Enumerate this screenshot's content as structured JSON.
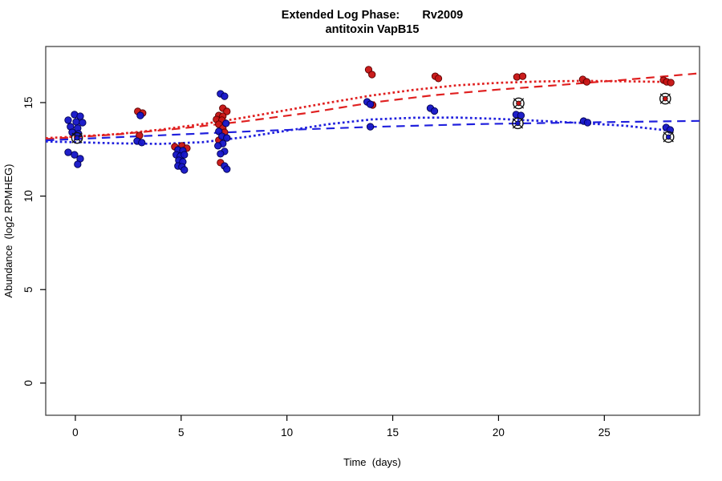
{
  "chart_data": {
    "type": "scatter",
    "title": "Extended Log Phase:       Rv2009",
    "subtitle": "antitoxin VapB15",
    "xlabel": "Time  (days)",
    "ylabel": "Abundance  (log2 RPMHEG)",
    "xlim": [
      -1.4,
      29.5
    ],
    "ylim": [
      -1.72,
      18.0
    ],
    "xticks": [
      0,
      5,
      10,
      15,
      20,
      25
    ],
    "yticks": [
      0,
      5,
      10,
      15
    ],
    "grid": false,
    "legend": "none",
    "colors": {
      "red": "#c81414",
      "red_edge": "#5a0000",
      "blue": "#1616c8",
      "blue_edge": "#000050",
      "red_line": "#e02020",
      "blue_line": "#2020dd",
      "flag_outline": "#111111",
      "axis": "#444444"
    },
    "series": [
      {
        "name": "red-points",
        "marker": "dot",
        "color_key": "red",
        "edge_key": "red_edge",
        "points": [
          [
            2.95,
            14.53
          ],
          [
            3.18,
            14.44
          ],
          [
            3.03,
            13.24
          ],
          [
            4.7,
            12.64
          ],
          [
            5.04,
            12.69
          ],
          [
            5.27,
            12.56
          ],
          [
            6.97,
            14.7
          ],
          [
            7.16,
            14.53
          ],
          [
            6.78,
            14.31
          ],
          [
            6.97,
            14.27
          ],
          [
            6.67,
            14.1
          ],
          [
            6.93,
            14.06
          ],
          [
            6.78,
            13.84
          ],
          [
            6.97,
            13.63
          ],
          [
            7.05,
            13.41
          ],
          [
            6.78,
            12.99
          ],
          [
            6.86,
            11.79
          ],
          [
            13.86,
            16.76
          ],
          [
            14.02,
            16.5
          ],
          [
            14.05,
            14.87
          ],
          [
            17.01,
            16.41
          ],
          [
            17.16,
            16.29
          ],
          [
            20.87,
            16.37
          ],
          [
            21.14,
            16.41
          ],
          [
            23.98,
            16.24
          ],
          [
            24.17,
            16.11
          ],
          [
            27.8,
            16.2
          ],
          [
            27.95,
            16.11
          ],
          [
            28.14,
            16.07
          ]
        ]
      },
      {
        "name": "blue-points",
        "marker": "dot",
        "color_key": "blue",
        "edge_key": "blue_edge",
        "points": [
          [
            -0.04,
            14.36
          ],
          [
            0.23,
            14.27
          ],
          [
            -0.34,
            14.06
          ],
          [
            0.04,
            13.97
          ],
          [
            0.34,
            13.93
          ],
          [
            -0.23,
            13.71
          ],
          [
            0.11,
            13.63
          ],
          [
            -0.15,
            13.41
          ],
          [
            0.15,
            13.33
          ],
          [
            -0.34,
            12.34
          ],
          [
            -0.04,
            12.21
          ],
          [
            0.23,
            12.0
          ],
          [
            0.11,
            11.7
          ],
          [
            3.07,
            14.31
          ],
          [
            2.92,
            12.94
          ],
          [
            3.14,
            12.86
          ],
          [
            4.85,
            12.47
          ],
          [
            5.08,
            12.43
          ],
          [
            4.77,
            12.21
          ],
          [
            4.96,
            12.13
          ],
          [
            5.15,
            12.21
          ],
          [
            4.89,
            11.91
          ],
          [
            5.08,
            11.83
          ],
          [
            4.85,
            11.61
          ],
          [
            5.04,
            11.57
          ],
          [
            5.15,
            11.4
          ],
          [
            6.86,
            15.47
          ],
          [
            7.05,
            15.34
          ],
          [
            7.12,
            13.89
          ],
          [
            6.78,
            13.46
          ],
          [
            6.93,
            13.2
          ],
          [
            7.16,
            13.11
          ],
          [
            6.97,
            12.81
          ],
          [
            6.74,
            12.69
          ],
          [
            7.05,
            12.39
          ],
          [
            6.86,
            12.26
          ],
          [
            7.05,
            11.61
          ],
          [
            7.16,
            11.44
          ],
          [
            13.79,
            15.04
          ],
          [
            13.94,
            14.91
          ],
          [
            13.94,
            13.71
          ],
          [
            16.78,
            14.7
          ],
          [
            16.97,
            14.55
          ],
          [
            20.83,
            14.36
          ],
          [
            21.06,
            14.31
          ],
          [
            24.02,
            14.01
          ],
          [
            24.21,
            13.93
          ],
          [
            27.92,
            13.67
          ],
          [
            28.11,
            13.54
          ]
        ]
      },
      {
        "name": "flagged-red-points",
        "marker": "circle-cross",
        "color_key": "red",
        "edge_key": "flag_outline",
        "points": [
          [
            20.95,
            14.96
          ],
          [
            27.88,
            15.21
          ]
        ]
      },
      {
        "name": "flagged-blue-points",
        "marker": "circle-cross",
        "color_key": "blue",
        "edge_key": "flag_outline",
        "points": [
          [
            0.08,
            13.11
          ],
          [
            20.91,
            13.89
          ],
          [
            28.03,
            13.16
          ]
        ]
      }
    ],
    "trend_lines": [
      {
        "name": "red-loess-line",
        "style": "dotted",
        "color_key": "red_line",
        "points": [
          [
            -1.4,
            13.1
          ],
          [
            0,
            13.18
          ],
          [
            2,
            13.32
          ],
          [
            4,
            13.55
          ],
          [
            6,
            13.85
          ],
          [
            8,
            14.2
          ],
          [
            10,
            14.6
          ],
          [
            12,
            15.0
          ],
          [
            14,
            15.38
          ],
          [
            16,
            15.68
          ],
          [
            18,
            15.92
          ],
          [
            20,
            16.06
          ],
          [
            22,
            16.13
          ],
          [
            24,
            16.16
          ],
          [
            26,
            16.14
          ],
          [
            28.1,
            16.1
          ]
        ]
      },
      {
        "name": "red-trend-line",
        "style": "dashed",
        "color_key": "red_line",
        "points": [
          [
            -1.4,
            13.05
          ],
          [
            2,
            13.3
          ],
          [
            5,
            13.62
          ],
          [
            8,
            14.0
          ],
          [
            11,
            14.45
          ],
          [
            14,
            15.0
          ],
          [
            17,
            15.4
          ],
          [
            20,
            15.7
          ],
          [
            23,
            15.95
          ],
          [
            26,
            16.22
          ],
          [
            29.5,
            16.57
          ]
        ]
      },
      {
        "name": "blue-loess-line",
        "style": "dotted",
        "color_key": "blue_line",
        "points": [
          [
            -1.4,
            12.92
          ],
          [
            0,
            12.88
          ],
          [
            2,
            12.82
          ],
          [
            4,
            12.79
          ],
          [
            6,
            12.88
          ],
          [
            8,
            13.15
          ],
          [
            10,
            13.5
          ],
          [
            12,
            13.85
          ],
          [
            14,
            14.1
          ],
          [
            16,
            14.19
          ],
          [
            18,
            14.2
          ],
          [
            20,
            14.13
          ],
          [
            22,
            14.02
          ],
          [
            24,
            13.9
          ],
          [
            26,
            13.76
          ],
          [
            28.1,
            13.5
          ]
        ]
      },
      {
        "name": "blue-trend-line",
        "style": "dashed",
        "color_key": "blue_line",
        "points": [
          [
            -1.4,
            12.98
          ],
          [
            4,
            13.25
          ],
          [
            9,
            13.5
          ],
          [
            14,
            13.7
          ],
          [
            19,
            13.85
          ],
          [
            24,
            13.94
          ],
          [
            29.5,
            14.02
          ]
        ]
      }
    ]
  }
}
